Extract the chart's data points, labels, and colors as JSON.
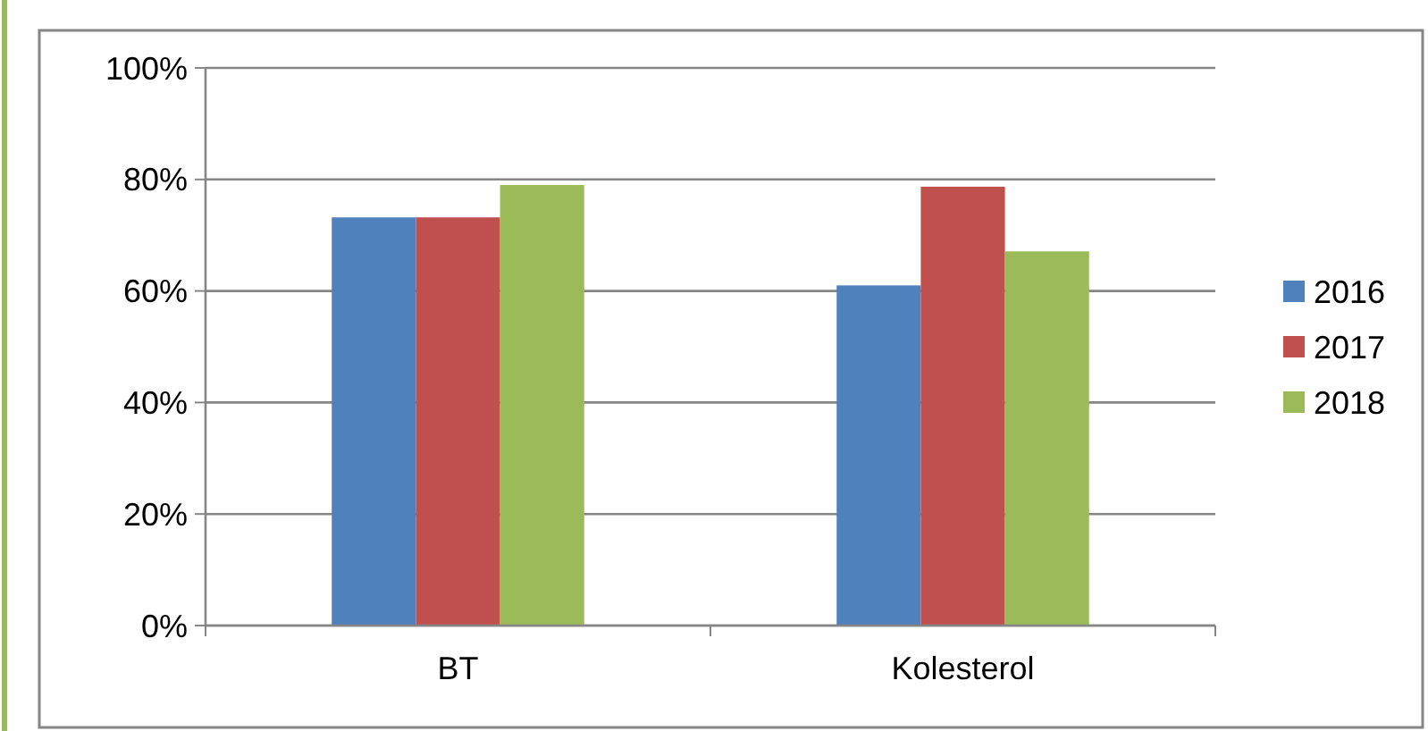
{
  "chart_data": {
    "type": "bar",
    "categories": [
      "BT",
      "Kolesterol"
    ],
    "series": [
      {
        "name": "2016",
        "color": "#4f81bd",
        "values": [
          73.2,
          61
        ]
      },
      {
        "name": "2017",
        "color": "#c0504d",
        "values": [
          73.2,
          78.7
        ]
      },
      {
        "name": "2018",
        "color": "#9bbb59",
        "values": [
          79,
          67.1
        ]
      }
    ],
    "ylim": [
      0,
      100
    ],
    "yticks": [
      {
        "value": 0,
        "label": "0%"
      },
      {
        "value": 20,
        "label": "20%"
      },
      {
        "value": 40,
        "label": "40%"
      },
      {
        "value": 60,
        "label": "60%"
      },
      {
        "value": 80,
        "label": "80%"
      },
      {
        "value": 100,
        "label": "100%"
      }
    ],
    "grid": "y",
    "legend": "right"
  }
}
